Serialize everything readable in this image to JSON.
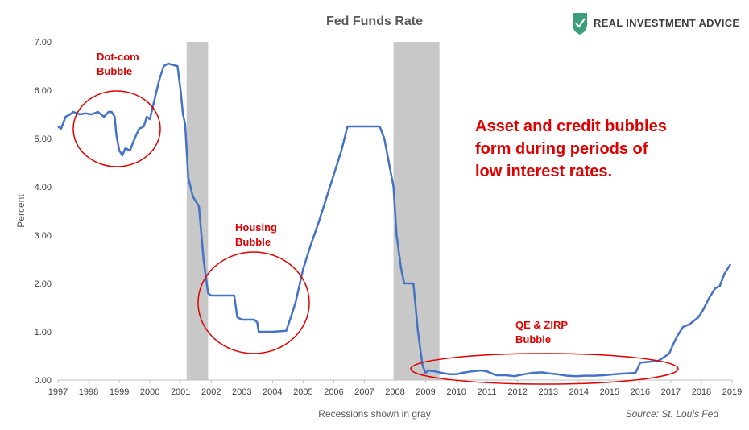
{
  "chart_data": {
    "type": "line",
    "title": "Fed Funds Rate",
    "xlabel": "Recessions shown in gray",
    "ylabel": "Percent",
    "ylim": [
      0,
      7
    ],
    "xlim": [
      1997,
      2019
    ],
    "grid": false,
    "yticks": [
      "0.00",
      "1.00",
      "2.00",
      "3.00",
      "4.00",
      "5.00",
      "6.00",
      "7.00"
    ],
    "xticks": [
      "1997",
      "1998",
      "1999",
      "2000",
      "2001",
      "2002",
      "2003",
      "2004",
      "2005",
      "2006",
      "2007",
      "2008",
      "2009",
      "2010",
      "2011",
      "2012",
      "2013",
      "2014",
      "2015",
      "2016",
      "2017",
      "2018",
      "2019"
    ],
    "recessions": [
      {
        "start": 2001.2,
        "end": 2001.9
      },
      {
        "start": 2007.95,
        "end": 2009.45
      }
    ],
    "series": [
      {
        "color": "#4472c4",
        "points": [
          [
            1997.0,
            5.25
          ],
          [
            1997.1,
            5.2
          ],
          [
            1997.25,
            5.45
          ],
          [
            1997.4,
            5.5
          ],
          [
            1997.5,
            5.55
          ],
          [
            1997.7,
            5.5
          ],
          [
            1997.9,
            5.52
          ],
          [
            1998.1,
            5.5
          ],
          [
            1998.3,
            5.55
          ],
          [
            1998.5,
            5.45
          ],
          [
            1998.65,
            5.55
          ],
          [
            1998.75,
            5.55
          ],
          [
            1998.85,
            5.45
          ],
          [
            1998.9,
            5.1
          ],
          [
            1999.0,
            4.75
          ],
          [
            1999.1,
            4.65
          ],
          [
            1999.2,
            4.8
          ],
          [
            1999.35,
            4.75
          ],
          [
            1999.5,
            5.0
          ],
          [
            1999.65,
            5.2
          ],
          [
            1999.8,
            5.25
          ],
          [
            1999.9,
            5.45
          ],
          [
            2000.0,
            5.4
          ],
          [
            2000.15,
            5.8
          ],
          [
            2000.3,
            6.2
          ],
          [
            2000.45,
            6.5
          ],
          [
            2000.6,
            6.55
          ],
          [
            2000.75,
            6.52
          ],
          [
            2000.9,
            6.5
          ],
          [
            2001.0,
            6.0
          ],
          [
            2001.08,
            5.5
          ],
          [
            2001.15,
            5.3
          ],
          [
            2001.25,
            4.2
          ],
          [
            2001.4,
            3.8
          ],
          [
            2001.6,
            3.6
          ],
          [
            2001.75,
            2.5
          ],
          [
            2001.9,
            1.8
          ],
          [
            2002.0,
            1.75
          ],
          [
            2002.4,
            1.75
          ],
          [
            2002.6,
            1.75
          ],
          [
            2002.75,
            1.75
          ],
          [
            2002.85,
            1.3
          ],
          [
            2003.0,
            1.25
          ],
          [
            2003.4,
            1.25
          ],
          [
            2003.5,
            1.2
          ],
          [
            2003.55,
            1.0
          ],
          [
            2004.0,
            1.0
          ],
          [
            2004.45,
            1.02
          ],
          [
            2004.6,
            1.3
          ],
          [
            2004.75,
            1.6
          ],
          [
            2005.0,
            2.3
          ],
          [
            2005.25,
            2.8
          ],
          [
            2005.5,
            3.25
          ],
          [
            2005.75,
            3.75
          ],
          [
            2006.0,
            4.25
          ],
          [
            2006.25,
            4.75
          ],
          [
            2006.45,
            5.25
          ],
          [
            2006.75,
            5.25
          ],
          [
            2007.0,
            5.25
          ],
          [
            2007.5,
            5.25
          ],
          [
            2007.65,
            5.0
          ],
          [
            2007.8,
            4.5
          ],
          [
            2007.95,
            4.0
          ],
          [
            2008.05,
            3.0
          ],
          [
            2008.2,
            2.3
          ],
          [
            2008.3,
            2.0
          ],
          [
            2008.6,
            2.0
          ],
          [
            2008.75,
            1.0
          ],
          [
            2008.9,
            0.3
          ],
          [
            2009.0,
            0.15
          ],
          [
            2009.1,
            0.2
          ],
          [
            2009.3,
            0.18
          ],
          [
            2009.5,
            0.15
          ],
          [
            2009.8,
            0.12
          ],
          [
            2010.0,
            0.12
          ],
          [
            2010.2,
            0.15
          ],
          [
            2010.5,
            0.18
          ],
          [
            2010.8,
            0.2
          ],
          [
            2011.0,
            0.18
          ],
          [
            2011.3,
            0.1
          ],
          [
            2011.6,
            0.1
          ],
          [
            2011.9,
            0.08
          ],
          [
            2012.2,
            0.12
          ],
          [
            2012.5,
            0.15
          ],
          [
            2012.8,
            0.16
          ],
          [
            2013.0,
            0.14
          ],
          [
            2013.3,
            0.12
          ],
          [
            2013.6,
            0.09
          ],
          [
            2013.9,
            0.08
          ],
          [
            2014.2,
            0.09
          ],
          [
            2014.5,
            0.09
          ],
          [
            2014.8,
            0.1
          ],
          [
            2015.0,
            0.11
          ],
          [
            2015.3,
            0.13
          ],
          [
            2015.6,
            0.14
          ],
          [
            2015.85,
            0.15
          ],
          [
            2016.0,
            0.36
          ],
          [
            2016.3,
            0.38
          ],
          [
            2016.6,
            0.4
          ],
          [
            2016.95,
            0.55
          ],
          [
            2017.05,
            0.7
          ],
          [
            2017.2,
            0.9
          ],
          [
            2017.4,
            1.1
          ],
          [
            2017.6,
            1.15
          ],
          [
            2017.9,
            1.3
          ],
          [
            2018.05,
            1.45
          ],
          [
            2018.25,
            1.7
          ],
          [
            2018.45,
            1.9
          ],
          [
            2018.6,
            1.95
          ],
          [
            2018.75,
            2.2
          ],
          [
            2018.95,
            2.4
          ]
        ]
      }
    ],
    "annotations": [
      {
        "lines": [
          "Dot-com",
          "Bubble"
        ]
      },
      {
        "lines": [
          "Housing",
          "Bubble"
        ]
      },
      {
        "lines": [
          "QE & ZIRP",
          "Bubble"
        ]
      },
      {
        "lines": [
          "Asset and credit bubbles",
          "form during periods of",
          "low interest rates."
        ]
      }
    ],
    "source": "Source: St. Louis Fed",
    "logo_text": "REAL INVESTMENT ADVICE",
    "colors": {
      "line": "#4472c4",
      "recession": "#c8c8c8",
      "annotation": "#e00000",
      "logo": "#3a9f7a"
    }
  }
}
